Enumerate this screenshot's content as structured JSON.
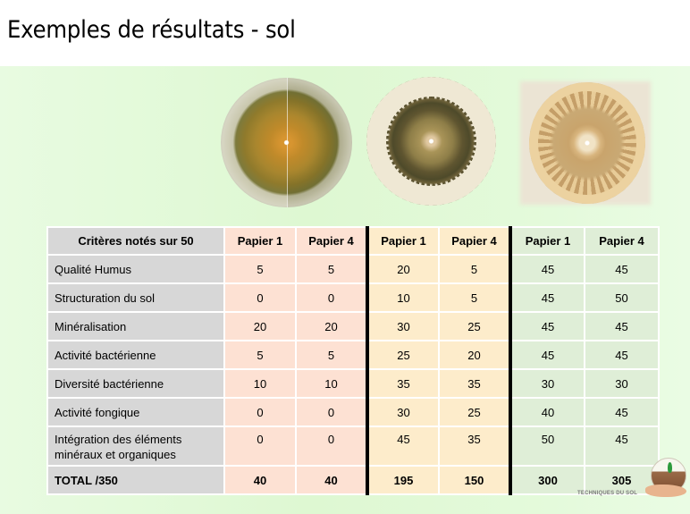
{
  "slide": {
    "title": "Exemples de résultats - sol"
  },
  "images": [
    {
      "name": "chromatogram-sample-1"
    },
    {
      "name": "chromatogram-sample-2"
    },
    {
      "name": "chromatogram-sample-3"
    }
  ],
  "table": {
    "header": [
      "Critères notés sur 50",
      "Papier 1",
      "Papier 4",
      "Papier 1",
      "Papier 4",
      "Papier 1",
      "Papier 4"
    ],
    "rows": [
      {
        "label": "Qualité Humus",
        "values": [
          "5",
          "5",
          "20",
          "5",
          "45",
          "45"
        ]
      },
      {
        "label": "Structuration du sol",
        "values": [
          "0",
          "0",
          "10",
          "5",
          "45",
          "50"
        ]
      },
      {
        "label": "Minéralisation",
        "values": [
          "20",
          "20",
          "30",
          "25",
          "45",
          "45"
        ]
      },
      {
        "label": "Activité bactérienne",
        "values": [
          "5",
          "5",
          "25",
          "20",
          "45",
          "45"
        ]
      },
      {
        "label": "Diversité bactérienne",
        "values": [
          "10",
          "10",
          "35",
          "35",
          "30",
          "30"
        ]
      },
      {
        "label": "Activité fongique",
        "values": [
          "0",
          "0",
          "30",
          "25",
          "40",
          "45"
        ]
      },
      {
        "label": "Intégration des éléments minéraux et organiques",
        "values": [
          "0",
          "0",
          "45",
          "35",
          "50",
          "45"
        ]
      }
    ],
    "total": {
      "label": "TOTAL /350",
      "values": [
        "40",
        "40",
        "195",
        "150",
        "300",
        "305"
      ]
    }
  },
  "colors": {
    "label_column": "#d7d7d7",
    "group_1": "#fde1d3",
    "group_2": "#fdeccb",
    "group_3": "#dfeed7",
    "panel_background": "#e2f9d8"
  },
  "logo": {
    "text_line_1": "GROUPE...",
    "text_line_2": "TECHNIQUES DU SOL"
  }
}
